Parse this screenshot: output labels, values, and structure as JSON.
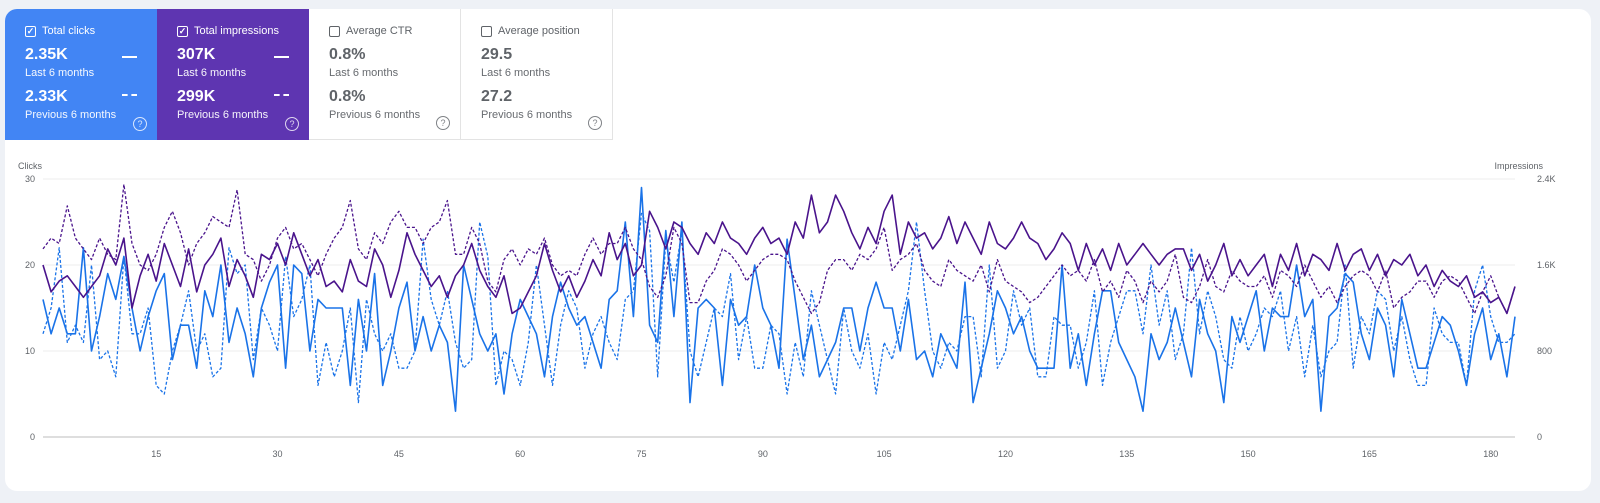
{
  "metrics": {
    "clicks": {
      "title": "Total clicks",
      "checked": "✓",
      "current": "2.35K",
      "current_label": "Last 6 months",
      "previous": "2.33K",
      "previous_label": "Previous 6 months",
      "help": "?"
    },
    "impressions": {
      "title": "Total impressions",
      "checked": "✓",
      "current": "307K",
      "current_label": "Last 6 months",
      "previous": "299K",
      "previous_label": "Previous 6 months",
      "help": "?"
    },
    "ctr": {
      "title": "Average CTR",
      "current": "0.8%",
      "current_label": "Last 6 months",
      "previous": "0.8%",
      "previous_label": "Previous 6 months",
      "help": "?"
    },
    "position": {
      "title": "Average position",
      "current": "29.5",
      "current_label": "Last 6 months",
      "previous": "27.2",
      "previous_label": "Previous 6 months",
      "help": "?"
    }
  },
  "chart_data": {
    "type": "line",
    "ylabel": "Clicks",
    "y2label": "Impressions",
    "ylim": [
      0,
      30
    ],
    "y2lim": [
      0,
      2400
    ],
    "y_ticks": [
      "0",
      "10",
      "20",
      "30"
    ],
    "y2_ticks": [
      "0",
      "800",
      "1.6K",
      "2.4K"
    ],
    "x_ticks": [
      "15",
      "30",
      "45",
      "60",
      "75",
      "90",
      "105",
      "120",
      "135",
      "150",
      "165",
      "180"
    ],
    "grid": true,
    "x": [
      1,
      2,
      3,
      4,
      5,
      6,
      7,
      8,
      9,
      10,
      11,
      12,
      13,
      14,
      15,
      16,
      17,
      18,
      19,
      20,
      21,
      22,
      23,
      24,
      25,
      26,
      27,
      28,
      29,
      30,
      31,
      32,
      33,
      34,
      35,
      36,
      37,
      38,
      39,
      40,
      41,
      42,
      43,
      44,
      45,
      46,
      47,
      48,
      49,
      50,
      51,
      52,
      53,
      54,
      55,
      56,
      57,
      58,
      59,
      60,
      61,
      62,
      63,
      64,
      65,
      66,
      67,
      68,
      69,
      70,
      71,
      72,
      73,
      74,
      75,
      76,
      77,
      78,
      79,
      80,
      81,
      82,
      83,
      84,
      85,
      86,
      87,
      88,
      89,
      90,
      91,
      92,
      93,
      94,
      95,
      96,
      97,
      98,
      99,
      100,
      101,
      102,
      103,
      104,
      105,
      106,
      107,
      108,
      109,
      110,
      111,
      112,
      113,
      114,
      115,
      116,
      117,
      118,
      119,
      120,
      121,
      122,
      123,
      124,
      125,
      126,
      127,
      128,
      129,
      130,
      131,
      132,
      133,
      134,
      135,
      136,
      137,
      138,
      139,
      140,
      141,
      142,
      143,
      144,
      145,
      146,
      147,
      148,
      149,
      150,
      151,
      152,
      153,
      154,
      155,
      156,
      157,
      158,
      159,
      160,
      161,
      162,
      163,
      164,
      165,
      166,
      167,
      168,
      169,
      170,
      171,
      172,
      173,
      174,
      175,
      176,
      177,
      178,
      179,
      180,
      181,
      182,
      183
    ],
    "series": [
      {
        "metric": "clicks",
        "period": "current",
        "axis": "left",
        "color": "#1a73e8",
        "style": "solid",
        "values": [
          16,
          12,
          15,
          12,
          12,
          22,
          10,
          14,
          19,
          16,
          21,
          15,
          10,
          14,
          17,
          19,
          9,
          13,
          13,
          8,
          17,
          14,
          20,
          11,
          15,
          12,
          7,
          15,
          18,
          20,
          8,
          20,
          19,
          10,
          16,
          15,
          15,
          15,
          6,
          16,
          10,
          19,
          6,
          10,
          15,
          18,
          10,
          14,
          10,
          13,
          11,
          3,
          20,
          16,
          12,
          10,
          12,
          5,
          12,
          16,
          14,
          12,
          7,
          14,
          18,
          15,
          13,
          14,
          11,
          8,
          16,
          17,
          25,
          14,
          29,
          13,
          11,
          24,
          14,
          25,
          4,
          15,
          16,
          15,
          6,
          16,
          13,
          14,
          20,
          15,
          13,
          8,
          23,
          16,
          9,
          13,
          7,
          9,
          11,
          15,
          15,
          10,
          15,
          18,
          15,
          15,
          10,
          16,
          9,
          10,
          7,
          12,
          10,
          8,
          18,
          4,
          8,
          12,
          17,
          15,
          12,
          14,
          10,
          8,
          8,
          8,
          20,
          8,
          12,
          6,
          12,
          17,
          17,
          11,
          9,
          7,
          3,
          12,
          9,
          11,
          15,
          11,
          7,
          16,
          12,
          10,
          4,
          14,
          11,
          14,
          17,
          10,
          15,
          14,
          14,
          20,
          14,
          16,
          3,
          14,
          15,
          19,
          18,
          12,
          9,
          15,
          13,
          7,
          16,
          12,
          8,
          8,
          11,
          14,
          13,
          10,
          6,
          12,
          15,
          9,
          12,
          7,
          14
        ]
      },
      {
        "metric": "clicks",
        "period": "previous",
        "axis": "left",
        "color": "#1a73e8",
        "style": "dashed",
        "values": [
          12,
          15,
          22,
          11,
          13,
          11,
          20,
          9,
          10,
          7,
          21,
          12,
          12,
          15,
          6,
          5,
          10,
          13,
          17,
          10,
          12,
          7,
          8,
          22,
          19,
          20,
          9,
          15,
          13,
          10,
          21,
          14,
          16,
          20,
          6,
          11,
          7,
          10,
          15,
          4,
          16,
          12,
          10,
          12,
          8,
          8,
          10,
          23,
          16,
          13,
          17,
          11,
          8,
          9,
          25,
          21,
          6,
          10,
          9,
          6,
          11,
          20,
          13,
          6,
          13,
          17,
          15,
          8,
          12,
          14,
          11,
          9,
          16,
          17,
          26,
          24,
          7,
          23,
          18,
          24,
          10,
          7,
          11,
          15,
          14,
          19,
          9,
          14,
          8,
          8,
          13,
          12,
          5,
          11,
          7,
          17,
          13,
          9,
          5,
          15,
          10,
          8,
          12,
          5,
          11,
          9,
          13,
          17,
          25,
          17,
          10,
          8,
          11,
          10,
          14,
          14,
          7,
          20,
          8,
          10,
          17,
          13,
          15,
          7,
          7,
          14,
          13,
          13,
          8,
          11,
          17,
          6,
          11,
          14,
          17,
          17,
          12,
          20,
          13,
          17,
          9,
          12,
          22,
          12,
          17,
          14,
          9,
          8,
          14,
          10,
          12,
          15,
          14,
          17,
          10,
          14,
          7,
          13,
          7,
          10,
          11,
          20,
          8,
          14,
          12,
          17,
          16,
          10,
          14,
          9,
          6,
          6,
          15,
          12,
          11,
          11,
          6,
          17,
          20,
          14,
          11,
          11,
          12
        ]
      },
      {
        "metric": "impressions",
        "period": "current",
        "axis": "right",
        "color": "#4a148c",
        "style": "solid",
        "values": [
          1600,
          1350,
          1450,
          1500,
          1400,
          1300,
          1400,
          1500,
          1750,
          1600,
          1850,
          1200,
          1500,
          1700,
          1450,
          1800,
          1600,
          1400,
          1750,
          1350,
          1600,
          1700,
          1850,
          1400,
          1650,
          1500,
          1300,
          1700,
          1650,
          1800,
          1600,
          1900,
          1700,
          1500,
          1650,
          1400,
          1450,
          1350,
          1650,
          1450,
          1400,
          1750,
          1600,
          1300,
          1550,
          1900,
          1700,
          1550,
          1400,
          1500,
          1300,
          1500,
          1600,
          1800,
          1550,
          1400,
          1300,
          1500,
          1150,
          1200,
          1350,
          1500,
          1800,
          1550,
          1350,
          1500,
          1300,
          1450,
          1650,
          1500,
          1900,
          1650,
          1800,
          1500,
          1600,
          2100,
          1950,
          1750,
          2000,
          1950,
          1800,
          1700,
          1900,
          1800,
          2000,
          1850,
          1800,
          1700,
          1850,
          1950,
          1800,
          1850,
          1700,
          2000,
          1850,
          2250,
          1900,
          2000,
          2250,
          2100,
          1900,
          1750,
          1950,
          1800,
          2100,
          2250,
          1700,
          2000,
          1850,
          1900,
          1750,
          1850,
          2050,
          1800,
          2000,
          1850,
          1700,
          2000,
          1800,
          1750,
          1850,
          2000,
          1850,
          1800,
          1650,
          1750,
          1900,
          1800,
          1550,
          1800,
          1600,
          1750,
          1550,
          1800,
          1600,
          1700,
          1800,
          1700,
          1600,
          1700,
          1750,
          1750,
          1550,
          1700,
          1450,
          1600,
          1800,
          1500,
          1650,
          1500,
          1600,
          1700,
          1400,
          1700,
          1550,
          1800,
          1500,
          1700,
          1650,
          1550,
          1800,
          1550,
          1700,
          1750,
          1550,
          1700,
          1500,
          1650,
          1600,
          1700,
          1500,
          1600,
          1400,
          1550,
          1450,
          1400,
          1500,
          1300,
          1350,
          1250,
          1300,
          1150,
          1400
        ]
      },
      {
        "metric": "impressions",
        "period": "previous",
        "axis": "right",
        "color": "#4a148c",
        "style": "dashed",
        "values": [
          1750,
          1850,
          1800,
          2150,
          1850,
          1750,
          1650,
          1850,
          1700,
          1650,
          2350,
          1800,
          1600,
          1550,
          1700,
          1950,
          2100,
          1900,
          1600,
          1800,
          1900,
          2050,
          2000,
          1950,
          2300,
          1700,
          1650,
          1450,
          1600,
          1850,
          1950,
          1750,
          1800,
          1650,
          1500,
          1700,
          1850,
          1950,
          2200,
          1750,
          1650,
          1900,
          1800,
          2000,
          2100,
          1950,
          1950,
          1800,
          1950,
          2000,
          2200,
          1700,
          1700,
          1950,
          1800,
          1450,
          1350,
          1650,
          1750,
          1600,
          1750,
          1700,
          1850,
          1600,
          1500,
          1550,
          1500,
          1700,
          1850,
          1700,
          1800,
          1800,
          1950,
          1750,
          1650,
          1400,
          1300,
          1500,
          1950,
          1800,
          1250,
          1250,
          1450,
          1550,
          1750,
          1700,
          1600,
          1450,
          1550,
          1650,
          1700,
          1700,
          1650,
          1450,
          1300,
          1150,
          1250,
          1550,
          1650,
          1650,
          1550,
          1700,
          1650,
          1750,
          1950,
          1550,
          1650,
          1700,
          1800,
          1550,
          1450,
          1400,
          1650,
          1550,
          1500,
          1450,
          1600,
          1350,
          1650,
          1450,
          1400,
          1350,
          1250,
          1300,
          1400,
          1500,
          1600,
          1500,
          1550,
          1450,
          1650,
          1350,
          1450,
          1300,
          1550,
          1450,
          1250,
          1450,
          1350,
          1450,
          1700,
          1300,
          1250,
          1400,
          1650,
          1400,
          1350,
          1550,
          1450,
          1400,
          1400,
          1500,
          1300,
          1550,
          1500,
          1400,
          1600,
          1450,
          1300,
          1400,
          1250,
          1400,
          1500,
          1550,
          1500,
          1350,
          1550,
          1200,
          1300,
          1350,
          1450,
          1450,
          1300,
          1450,
          1500,
          1450,
          1300,
          1150,
          1350,
          1500,
          1300,
          1150,
          1400
        ]
      }
    ]
  }
}
